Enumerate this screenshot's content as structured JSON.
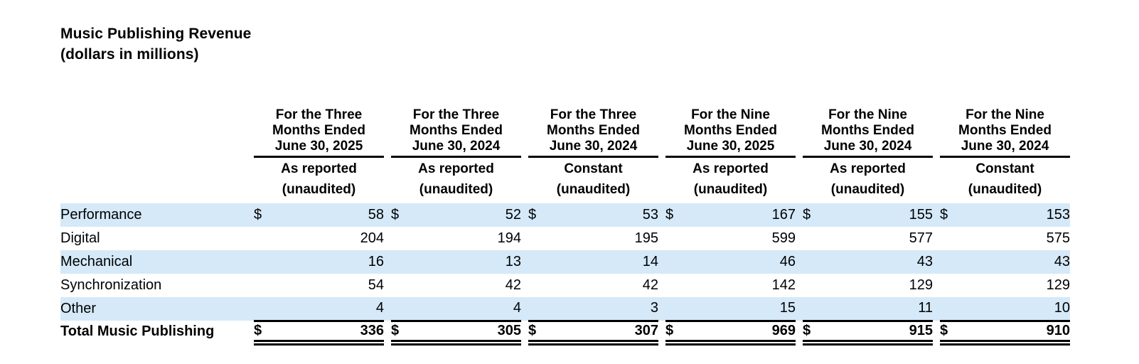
{
  "title": {
    "line1": "Music Publishing Revenue",
    "line2": "(dollars in millions)"
  },
  "table": {
    "currency_symbol": "$",
    "column_groups": [
      {
        "period_lines": [
          "For the Three",
          "Months Ended",
          "June 30, 2025"
        ],
        "basis": "As reported",
        "note": "(unaudited)"
      },
      {
        "period_lines": [
          "For the Three",
          "Months Ended",
          "June 30, 2024"
        ],
        "basis": "As reported",
        "note": "(unaudited)"
      },
      {
        "period_lines": [
          "For the Three",
          "Months Ended",
          "June 30, 2024"
        ],
        "basis": "Constant",
        "note": "(unaudited)"
      },
      {
        "period_lines": [
          "For the Nine",
          "Months Ended",
          "June 30, 2025"
        ],
        "basis": "As reported",
        "note": "(unaudited)"
      },
      {
        "period_lines": [
          "For the Nine",
          "Months Ended",
          "June 30, 2024"
        ],
        "basis": "As reported",
        "note": "(unaudited)"
      },
      {
        "period_lines": [
          "For the Nine",
          "Months Ended",
          "June 30, 2024"
        ],
        "basis": "Constant",
        "note": "(unaudited)"
      }
    ],
    "rows": [
      {
        "label": "Performance",
        "values": [
          58,
          52,
          53,
          167,
          155,
          153
        ]
      },
      {
        "label": "Digital",
        "values": [
          204,
          194,
          195,
          599,
          577,
          575
        ]
      },
      {
        "label": "Mechanical",
        "values": [
          16,
          13,
          14,
          46,
          43,
          43
        ]
      },
      {
        "label": "Synchronization",
        "values": [
          54,
          42,
          42,
          142,
          129,
          129
        ]
      },
      {
        "label": "Other",
        "values": [
          4,
          4,
          3,
          15,
          11,
          10
        ]
      }
    ],
    "total_row": {
      "label": "Total Music Publishing",
      "values": [
        336,
        305,
        307,
        969,
        915,
        910
      ]
    }
  },
  "colors": {
    "stripe_blue": "#d5e9f9",
    "rule_black": "#000000",
    "background": "#ffffff"
  }
}
